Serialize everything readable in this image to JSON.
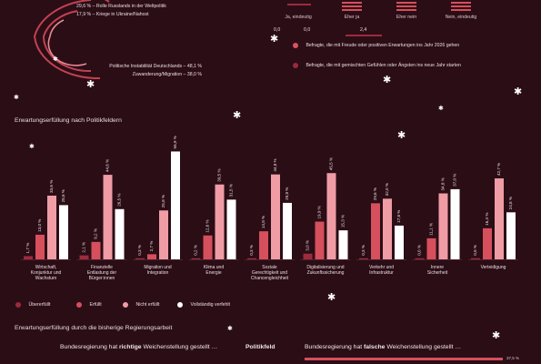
{
  "arc": {
    "left_items": [
      "29,6 % – Rolle Russlands in der Weltpolitik",
      "17,9 % – Kriege in Ukraine/Nahost"
    ],
    "right_items": [
      "Politische Instabilität Deutschlands – 48,1 %",
      "Zuwanderung/Migration – 38,0 %"
    ]
  },
  "responses": {
    "scale_values": [
      "0,0",
      "0,0",
      "2,4"
    ],
    "labels": [
      "Ja, eindeutig",
      "Eher ja",
      "Eher nein",
      "Nein, eindeutig"
    ]
  },
  "legend_top": [
    {
      "label": "Befragte, die mit Freude oder positiven Erwartungen ins Jahr 2026 gehen",
      "color": "#d9535f"
    },
    {
      "label": "Befragte, die mit gemischten Gefühlen oder Ängsten ins neue Jahr starten",
      "color": "#9b2a3b"
    }
  ],
  "section_title": "Erwartungserfüllung nach Politikfeldern",
  "chart_data": {
    "type": "bar",
    "title": "Erwartungserfüllung nach Politikfeldern",
    "categories": [
      "Wirtschaft,\nKonjunktur und\nWachstum",
      "Finanzielle\nEntlastung der\nBürger:innen",
      "Migration und\nIntegration",
      "Klima und\nEnergie",
      "Soziale\nGerechtigkeit und\nChancengleichheit",
      "Digitalisierung und\nZukunftssicherung",
      "Verkehr und\nInfrastruktur",
      "Innere\nSicherheit",
      "Verteidigung"
    ],
    "series": [
      {
        "name": "Übererfüllt",
        "color": "#9e2a3c",
        "values": [
          1.7,
          2.1,
          0.3,
          0.2,
          0.3,
          3.0,
          0.3,
          0.0,
          0.6
        ],
        "labels": [
          "1,7 %",
          "2,1 %",
          "0,3 %",
          "0,2 %",
          "0,3 %",
          "3,0 %",
          "0,3 %",
          "0,0 %",
          "0,6 %"
        ]
      },
      {
        "name": "Erfüllt",
        "color": "#d64f5c",
        "values": [
          13.0,
          9.2,
          2.7,
          12.6,
          14.8,
          19.9,
          29.6,
          11.1,
          16.4
        ],
        "labels": [
          "13,0 %",
          "9,2 %",
          "2,7 %",
          "12,6 %",
          "14,8 %",
          "19,9 %",
          "29,6 %",
          "11,1 %",
          "16,4 %"
        ]
      },
      {
        "name": "Nicht erfüllt",
        "color": "#ef9ca5",
        "values": [
          33.6,
          44.6,
          25.8,
          39.5,
          44.8,
          45.5,
          32.0,
          34.8,
          42.7
        ],
        "labels": [
          "33,6 %",
          "44,6 %",
          "25,8 %",
          "39,5 %",
          "44,8 %",
          "45,5 %",
          "32,0 %",
          "34,8 %",
          "42,7 %"
        ]
      },
      {
        "name": "Vollständig verfehlt",
        "color": "#ffffff",
        "values": [
          28.6,
          26.5,
          56.9,
          31.5,
          29.8,
          15.3,
          17.8,
          37.0,
          24.8
        ],
        "labels": [
          "28,6 %",
          "26,5 %",
          "56,9 %",
          "31,5 %",
          "29,8 %",
          "15,3 %",
          "17,8 %",
          "37,0 %",
          "24,8 %"
        ]
      }
    ],
    "ylim": [
      0,
      60
    ],
    "legend_position": "bottom-left",
    "grid": false
  },
  "bottom": {
    "title": "Erwartungserfüllung durch die bisherige Regierungsarbeit",
    "left_pre": "Bundesregierung hat ",
    "left_bold": "richtige",
    "left_post": " Weichenstellung gestellt …",
    "center": "Politikfeld",
    "right_pre": "Bundesregierung hat ",
    "right_bold": "falsche",
    "right_post": " Weichenstellung gestellt …",
    "bar_value": "37,5 %"
  }
}
